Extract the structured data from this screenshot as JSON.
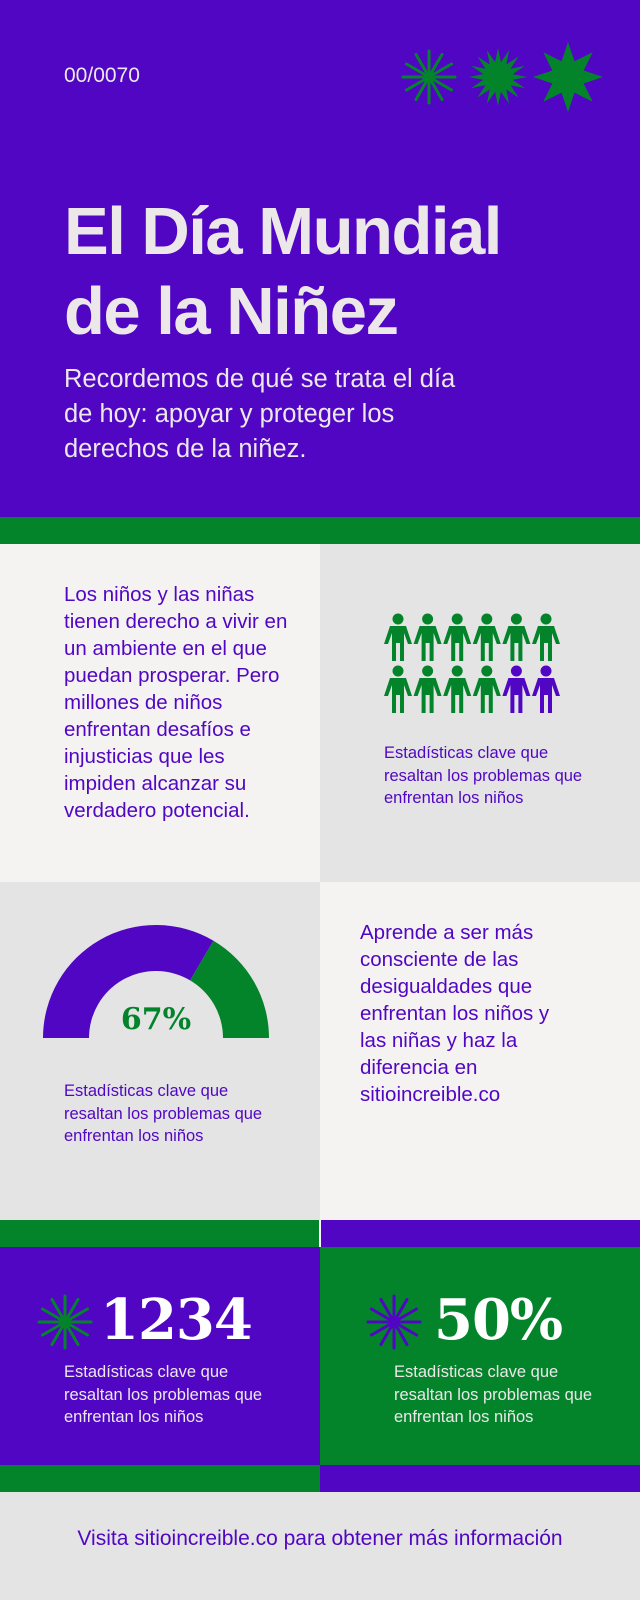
{
  "header": {
    "code": "00/0070",
    "title": "El Día Mundial de la Niñez",
    "subtitle": "Recordemos de qué se trata el día de hoy: apoyar y proteger los derechos de la niñez."
  },
  "intro": "Los niños y las niñas tienen derecho a vivir en un ambiente en el que puedan prosperar. Pero millones de niños enfrentan desafíos e injusticias que les impiden alcanzar su verdadero potencial.",
  "pictogram": {
    "total": 12,
    "highlighted": 10,
    "caption": "Estadísticas clave que resaltan los problemas que enfrentan los niños"
  },
  "gauge": {
    "value": 67,
    "label": "67%",
    "caption": "Estadísticas clave que resaltan los problemas que enfrentan los niños"
  },
  "awareness": "Aprende a ser más consciente de las desigualdades que enfrentan los niños y las niñas y haz la diferencia en sitioincreible.co",
  "stats": [
    {
      "value": "1234",
      "caption": "Estadísticas clave que resaltan los problemas que enfrentan los niños"
    },
    {
      "value": "50%",
      "caption": "Estadísticas clave que resaltan los problemas que enfrentan los niños"
    }
  ],
  "footer": "Visita sitioincreible.co para obtener más información"
}
